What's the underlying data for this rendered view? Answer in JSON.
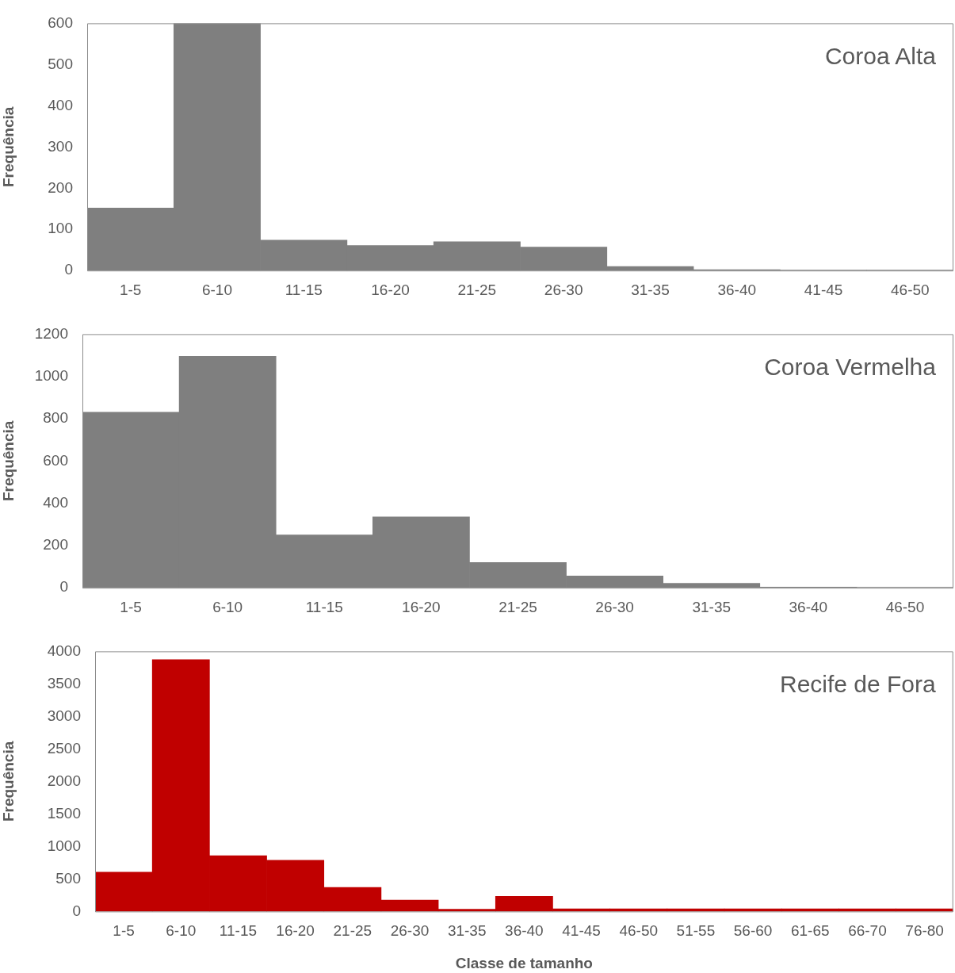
{
  "chart_data": [
    {
      "type": "bar",
      "title": "Coroa Alta",
      "ylabel": "Frequência",
      "categories": [
        "1-5",
        "6-10",
        "11-15",
        "16-20",
        "21-25",
        "26-30",
        "31-35",
        "36-40",
        "41-45",
        "46-50"
      ],
      "values": [
        152,
        600,
        74,
        61,
        70,
        57,
        10,
        2,
        1,
        1
      ],
      "color": "#7f7f7f",
      "ylim": [
        0,
        600
      ],
      "yticks": [
        0,
        100,
        200,
        300,
        400,
        500,
        600
      ],
      "grid": false,
      "legend": false
    },
    {
      "type": "bar",
      "title": "Coroa Vermelha",
      "ylabel": "Frequência",
      "categories": [
        "1-5",
        "6-10",
        "11-15",
        "16-20",
        "21-25",
        "26-30",
        "31-35",
        "36-40",
        "46-50"
      ],
      "values": [
        831,
        1095,
        250,
        335,
        120,
        56,
        21,
        3,
        2
      ],
      "color": "#7f7f7f",
      "ylim": [
        0,
        1200
      ],
      "yticks": [
        0,
        200,
        400,
        600,
        800,
        1000,
        1200
      ],
      "grid": false,
      "legend": false
    },
    {
      "type": "bar",
      "title": "Recife de Fora",
      "xlabel": "Classe de tamanho",
      "ylabel": "Frequência",
      "categories": [
        "1-5",
        "6-10",
        "11-15",
        "16-20",
        "21-25",
        "26-30",
        "31-35",
        "36-40",
        "41-45",
        "46-50",
        "51-55",
        "56-60",
        "61-65",
        "66-70",
        "76-80"
      ],
      "values": [
        603,
        3872,
        858,
        788,
        371,
        174,
        35,
        232,
        40,
        40,
        40,
        40,
        40,
        40,
        40
      ],
      "color": "#c00000",
      "ylim": [
        0,
        4000
      ],
      "yticks": [
        0,
        500,
        1000,
        1500,
        2000,
        2500,
        3000,
        3500,
        4000
      ],
      "grid": false,
      "legend": false
    }
  ]
}
